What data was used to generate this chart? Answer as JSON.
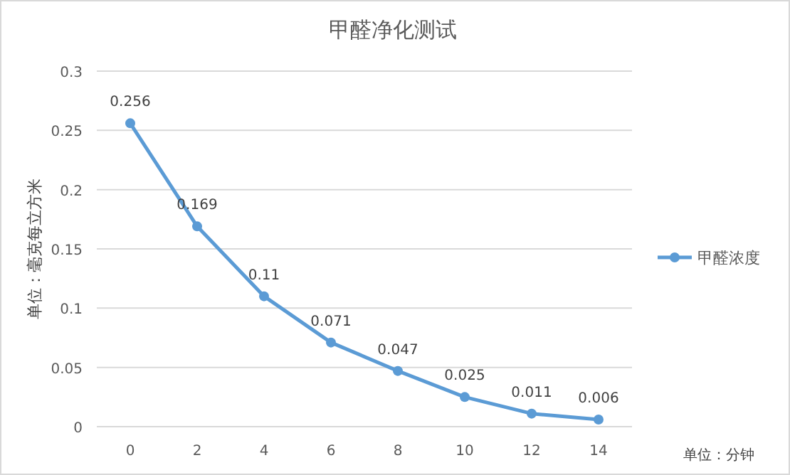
{
  "chart_data": {
    "type": "line",
    "title": "甲醛净化测试",
    "xlabel": "单位：分钟",
    "ylabel": "单位：毫克每立方米",
    "categories": [
      "0",
      "2",
      "4",
      "6",
      "8",
      "10",
      "12",
      "14"
    ],
    "series": [
      {
        "name": "甲醛浓度",
        "color": "#5b9bd5",
        "values": [
          0.256,
          0.169,
          0.11,
          0.071,
          0.047,
          0.025,
          0.011,
          0.006
        ]
      }
    ],
    "ylim": [
      0,
      0.3
    ],
    "yticks": [
      0,
      0.05,
      0.1,
      0.15,
      0.2,
      0.25,
      0.3
    ],
    "grid": "y",
    "legend": "right",
    "marker": "circle",
    "line_style": "solid",
    "data_labels": true
  }
}
